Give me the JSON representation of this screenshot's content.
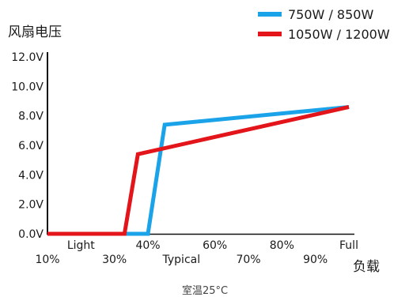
{
  "chart_data": {
    "type": "line",
    "title": "",
    "ylabel": "风扇电压",
    "xlabel": "负载",
    "note": "室温25°C",
    "ylim": [
      0,
      12
    ],
    "xlim": [
      10,
      100
    ],
    "y_ticks": [
      "0.0V",
      "2.0V",
      "4.0V",
      "6.0V",
      "8.0V",
      "10.0V",
      "12.0V"
    ],
    "x_ticks_upper": [
      {
        "x": 20,
        "label": "Light"
      },
      {
        "x": 40,
        "label": "40%"
      },
      {
        "x": 60,
        "label": "60%"
      },
      {
        "x": 80,
        "label": "80%"
      },
      {
        "x": 100,
        "label": "Full"
      }
    ],
    "x_ticks_lower": [
      {
        "x": 10,
        "label": "10%"
      },
      {
        "x": 30,
        "label": "30%"
      },
      {
        "x": 50,
        "label": "Typical"
      },
      {
        "x": 70,
        "label": "70%"
      },
      {
        "x": 90,
        "label": "90%"
      }
    ],
    "legend_position": "top-right",
    "grid": false,
    "series": [
      {
        "name": "750W / 850W",
        "color": "#1aa3e8",
        "points": [
          [
            10,
            0
          ],
          [
            38,
            0
          ],
          [
            40,
            0
          ],
          [
            45,
            7.4
          ],
          [
            100,
            8.6
          ]
        ]
      },
      {
        "name": "1050W / 1200W",
        "color": "#e3151b",
        "points": [
          [
            10,
            0
          ],
          [
            33,
            0
          ],
          [
            37,
            5.4
          ],
          [
            100,
            8.6
          ]
        ]
      }
    ]
  }
}
